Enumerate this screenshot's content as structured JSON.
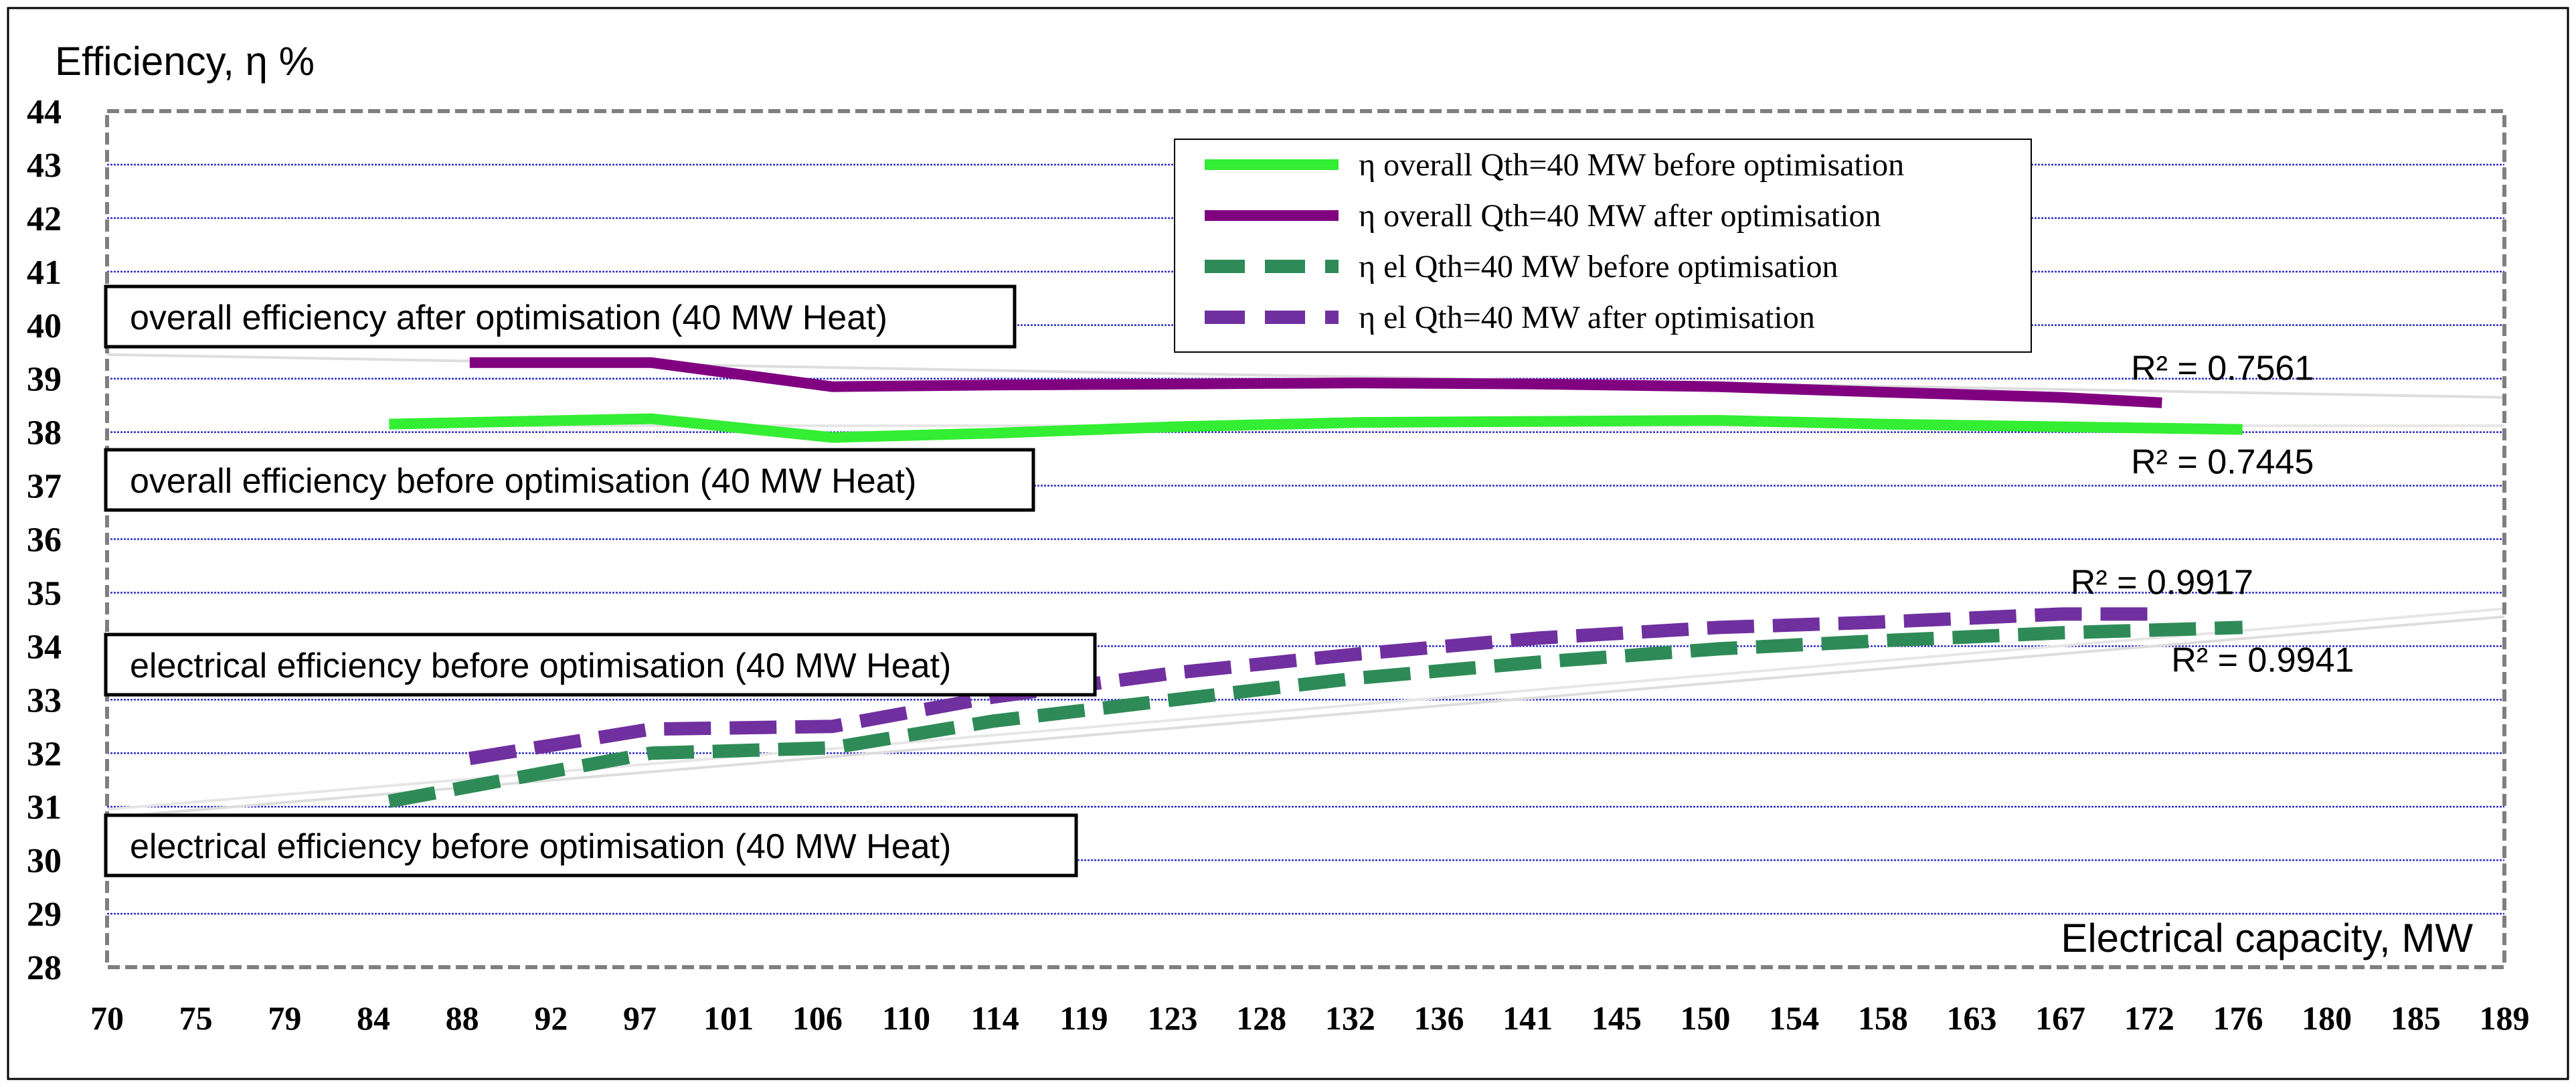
{
  "chart_data": {
    "type": "line",
    "ylabel": "Efficiency, η %",
    "xlabel": "Electrical capacity, MW",
    "ylim": [
      28,
      44
    ],
    "y_ticks": [
      "28",
      "29",
      "30",
      "31",
      "32",
      "33",
      "34",
      "35",
      "36",
      "37",
      "38",
      "39",
      "40",
      "41",
      "42",
      "43",
      "44"
    ],
    "x_ticks": [
      "70",
      "75",
      "79",
      "84",
      "88",
      "92",
      "97",
      "101",
      "106",
      "110",
      "114",
      "119",
      "123",
      "128",
      "132",
      "136",
      "141",
      "145",
      "150",
      "154",
      "158",
      "163",
      "167",
      "172",
      "176",
      "180",
      "185",
      "189"
    ],
    "x_range": [
      70,
      189
    ],
    "grid": true,
    "legend_position": "top-center",
    "series": [
      {
        "name": "η overall Qth=40 MW before optimisation",
        "color": "#33ee33",
        "style": "solid",
        "x": [
          84,
          97,
          106,
          114,
          123,
          132,
          141,
          150,
          158,
          167,
          176
        ],
        "values": [
          38.15,
          38.25,
          37.9,
          37.98,
          38.1,
          38.18,
          38.2,
          38.22,
          38.15,
          38.1,
          38.05
        ]
      },
      {
        "name": "η overall Qth=40 MW after optimisation",
        "color": "#800080",
        "style": "solid",
        "x": [
          88,
          97,
          106,
          114,
          123,
          132,
          141,
          150,
          158,
          167,
          172
        ],
        "values": [
          39.3,
          39.3,
          38.85,
          38.88,
          38.9,
          38.92,
          38.9,
          38.85,
          38.75,
          38.65,
          38.55
        ]
      },
      {
        "name": "η el Qth=40 MW before optimisation",
        "color": "#2e8b57",
        "style": "dashed",
        "x": [
          84,
          97,
          106,
          114,
          123,
          132,
          141,
          150,
          158,
          167,
          176
        ],
        "values": [
          31.1,
          32.0,
          32.1,
          32.6,
          33.0,
          33.4,
          33.7,
          33.95,
          34.1,
          34.25,
          34.35
        ]
      },
      {
        "name": "η el Qth=40 MW after optimisation",
        "color": "#7030a0",
        "style": "dashed",
        "x": [
          88,
          97,
          106,
          114,
          123,
          132,
          141,
          150,
          158,
          167,
          172
        ],
        "values": [
          31.9,
          32.45,
          32.5,
          33.05,
          33.5,
          33.85,
          34.15,
          34.35,
          34.45,
          34.6,
          34.6
        ]
      }
    ],
    "trendlines": [
      {
        "color": "#dddddd",
        "x": [
          70,
          189
        ],
        "values": [
          39.45,
          38.65
        ]
      },
      {
        "color": "#e6e6e6",
        "x": [
          84,
          189
        ],
        "values": [
          38.12,
          38.12
        ]
      },
      {
        "color": "#dddddd",
        "x": [
          70,
          189
        ],
        "values": [
          30.8,
          34.55
        ]
      },
      {
        "color": "#e6e6e6",
        "x": [
          70,
          189
        ],
        "values": [
          30.95,
          34.7
        ]
      }
    ],
    "r2_labels": [
      {
        "text": "R² = 0.7561",
        "x": 176,
        "y": 39.2
      },
      {
        "text": "R² = 0.7445",
        "x": 176,
        "y": 37.45
      },
      {
        "text": "R² = 0.9917",
        "x": 173,
        "y": 35.2
      },
      {
        "text": "R² = 0.9941",
        "x": 178,
        "y": 33.75
      }
    ],
    "annotations": [
      {
        "text": "overall efficiency after optimisation (40 MW Heat)",
        "x": 70,
        "y": 40.1
      },
      {
        "text": "overall efficiency before optimisation (40 MW Heat)",
        "x": 70,
        "y": 37.0
      },
      {
        "text": "electrical efficiency before optimisation (40 MW Heat)",
        "x": 70,
        "y": 34.1
      },
      {
        "text": "electrical efficiency before optimisation (40 MW Heat)",
        "x": 70,
        "y": 30.8
      }
    ]
  }
}
